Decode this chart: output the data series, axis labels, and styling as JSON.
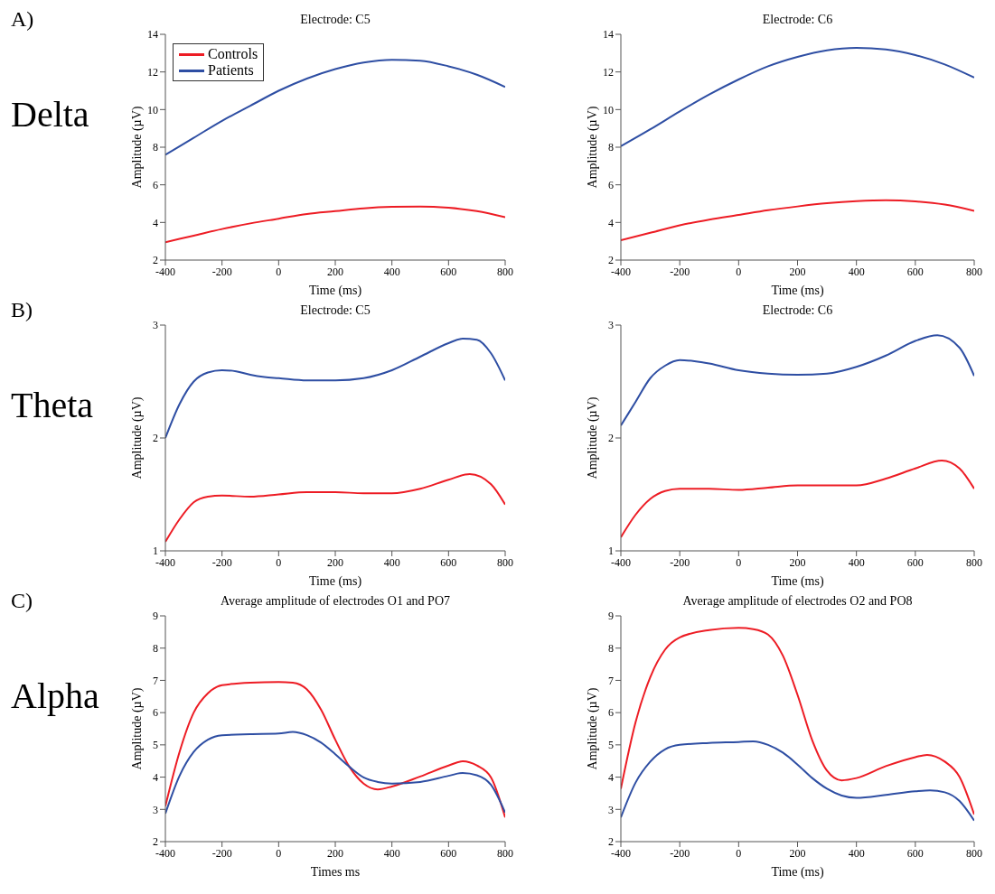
{
  "chart_data": [
    {
      "type": "line",
      "title": "Electrode: C5",
      "xlabel": "Time (ms)",
      "ylabel": "Amplitude (µV)",
      "annotations": [
        "A)",
        "Delta"
      ],
      "xlim": [
        -400,
        800
      ],
      "xticks": [
        -400,
        -200,
        0,
        200,
        400,
        600,
        800
      ],
      "ylim": [
        2,
        14
      ],
      "yticks": [
        2,
        4,
        6,
        8,
        10,
        12,
        14
      ],
      "legend": "top left",
      "grid": false,
      "marker": "none",
      "line_style": "solid",
      "series": [
        {
          "name": "Controls",
          "color": "#ed1c24",
          "x": [
            -400,
            -300,
            -200,
            -100,
            0,
            100,
            200,
            300,
            400,
            500,
            600,
            700,
            800
          ],
          "values": [
            2.95,
            3.3,
            3.65,
            3.95,
            4.2,
            4.45,
            4.6,
            4.75,
            4.83,
            4.85,
            4.78,
            4.6,
            4.28
          ]
        },
        {
          "name": "Patients",
          "color": "#2e4ea3",
          "x": [
            -400,
            -300,
            -200,
            -100,
            0,
            100,
            200,
            300,
            400,
            500,
            600,
            700,
            800
          ],
          "values": [
            7.6,
            8.5,
            9.4,
            10.2,
            11.0,
            11.65,
            12.15,
            12.5,
            12.65,
            12.6,
            12.3,
            11.85,
            11.2
          ]
        }
      ]
    },
    {
      "type": "line",
      "title": "Electrode: C6",
      "xlabel": "Time (ms)",
      "ylabel": "Amplitude (µV)",
      "xlim": [
        -400,
        800
      ],
      "xticks": [
        -400,
        -200,
        0,
        200,
        400,
        600,
        800
      ],
      "ylim": [
        2,
        14
      ],
      "yticks": [
        2,
        4,
        6,
        8,
        10,
        12,
        14
      ],
      "grid": false,
      "marker": "none",
      "line_style": "solid",
      "series": [
        {
          "color": "#ed1c24",
          "x": [
            -400,
            -300,
            -200,
            -100,
            0,
            100,
            200,
            300,
            400,
            500,
            600,
            700,
            800
          ],
          "values": [
            3.05,
            3.45,
            3.85,
            4.15,
            4.4,
            4.65,
            4.85,
            5.02,
            5.13,
            5.18,
            5.12,
            4.95,
            4.62
          ]
        },
        {
          "color": "#2e4ea3",
          "x": [
            -400,
            -300,
            -200,
            -100,
            0,
            100,
            200,
            300,
            400,
            500,
            600,
            700,
            800
          ],
          "values": [
            8.05,
            8.95,
            9.9,
            10.8,
            11.6,
            12.3,
            12.8,
            13.15,
            13.28,
            13.2,
            12.9,
            12.4,
            11.7
          ]
        }
      ]
    },
    {
      "type": "line",
      "title": "Electrode: C5",
      "xlabel": "Time (ms)",
      "ylabel": "Amplitude (µV)",
      "annotations": [
        "B)",
        "Theta"
      ],
      "xlim": [
        -400,
        800
      ],
      "xticks": [
        -400,
        -200,
        0,
        200,
        400,
        600,
        800
      ],
      "ylim": [
        1,
        3
      ],
      "yticks": [
        1,
        2,
        3
      ],
      "grid": false,
      "marker": "none",
      "line_style": "solid",
      "series": [
        {
          "color": "#ed1c24",
          "x": [
            -400,
            -350,
            -300,
            -250,
            -200,
            -100,
            0,
            100,
            200,
            300,
            400,
            500,
            600,
            675,
            750,
            800
          ],
          "values": [
            1.08,
            1.28,
            1.43,
            1.48,
            1.49,
            1.48,
            1.5,
            1.52,
            1.52,
            1.51,
            1.51,
            1.55,
            1.63,
            1.68,
            1.59,
            1.41
          ]
        },
        {
          "color": "#2e4ea3",
          "x": [
            -400,
            -350,
            -300,
            -250,
            -200,
            -150,
            -100,
            -50,
            0,
            100,
            200,
            300,
            400,
            500,
            600,
            650,
            700,
            750,
            800
          ],
          "values": [
            2.0,
            2.3,
            2.5,
            2.58,
            2.6,
            2.59,
            2.56,
            2.54,
            2.53,
            2.51,
            2.51,
            2.53,
            2.6,
            2.72,
            2.84,
            2.88,
            2.87,
            2.75,
            2.51
          ]
        }
      ]
    },
    {
      "type": "line",
      "title": "Electrode: C6",
      "xlabel": "Time (ms)",
      "ylabel": "Amplitude (µV)",
      "xlim": [
        -400,
        800
      ],
      "xticks": [
        -400,
        -200,
        0,
        200,
        400,
        600,
        800
      ],
      "ylim": [
        1,
        3
      ],
      "yticks": [
        1,
        2,
        3
      ],
      "grid": false,
      "marker": "none",
      "line_style": "solid",
      "series": [
        {
          "color": "#ed1c24",
          "x": [
            -400,
            -350,
            -300,
            -250,
            -200,
            -100,
            0,
            100,
            200,
            300,
            400,
            500,
            600,
            690,
            750,
            800
          ],
          "values": [
            1.12,
            1.32,
            1.46,
            1.53,
            1.55,
            1.55,
            1.54,
            1.56,
            1.58,
            1.58,
            1.58,
            1.64,
            1.73,
            1.8,
            1.73,
            1.55
          ]
        },
        {
          "color": "#2e4ea3",
          "x": [
            -400,
            -350,
            -300,
            -250,
            -200,
            -150,
            -100,
            0,
            100,
            200,
            300,
            400,
            500,
            600,
            675,
            750,
            800
          ],
          "values": [
            2.11,
            2.32,
            2.53,
            2.64,
            2.69,
            2.68,
            2.66,
            2.6,
            2.57,
            2.56,
            2.57,
            2.63,
            2.73,
            2.86,
            2.91,
            2.8,
            2.55
          ]
        }
      ]
    },
    {
      "type": "line",
      "title": "Average amplitude of electrodes O1 and PO7",
      "xlabel": "Times ms",
      "ylabel": "Amplitude (µV)",
      "annotations": [
        "C)",
        "Alpha"
      ],
      "xlim": [
        -400,
        800
      ],
      "xticks": [
        -400,
        -200,
        0,
        200,
        400,
        600,
        800
      ],
      "ylim": [
        2,
        9
      ],
      "yticks": [
        2,
        3,
        4,
        5,
        6,
        7,
        8,
        9
      ],
      "grid": false,
      "marker": "none",
      "line_style": "solid",
      "series": [
        {
          "color": "#ed1c24",
          "x": [
            -400,
            -350,
            -300,
            -250,
            -200,
            -100,
            0,
            50,
            100,
            150,
            200,
            250,
            300,
            350,
            400,
            500,
            600,
            650,
            700,
            750,
            800
          ],
          "values": [
            3.1,
            4.78,
            6.0,
            6.6,
            6.85,
            6.93,
            6.95,
            6.93,
            6.72,
            6.09,
            5.16,
            4.32,
            3.8,
            3.62,
            3.71,
            4.02,
            4.36,
            4.49,
            4.36,
            3.99,
            2.75
          ]
        },
        {
          "color": "#2e4ea3",
          "x": [
            -400,
            -350,
            -300,
            -250,
            -200,
            -100,
            0,
            50,
            100,
            150,
            200,
            250,
            300,
            350,
            400,
            500,
            600,
            650,
            700,
            750,
            800
          ],
          "values": [
            2.87,
            4.04,
            4.78,
            5.16,
            5.3,
            5.33,
            5.35,
            5.4,
            5.3,
            5.07,
            4.71,
            4.32,
            3.99,
            3.85,
            3.8,
            3.85,
            4.04,
            4.13,
            4.06,
            3.76,
            2.9
          ]
        }
      ]
    },
    {
      "type": "line",
      "title": "Average amplitude of electrodes O2 and PO8",
      "xlabel": "Time (ms)",
      "ylabel": "Amplitude (µV)",
      "xlim": [
        -400,
        800
      ],
      "xticks": [
        -400,
        -200,
        0,
        200,
        400,
        600,
        800
      ],
      "ylim": [
        2,
        9
      ],
      "yticks": [
        2,
        3,
        4,
        5,
        6,
        7,
        8,
        9
      ],
      "grid": false,
      "marker": "none",
      "line_style": "solid",
      "series": [
        {
          "color": "#ed1c24",
          "x": [
            -400,
            -350,
            -300,
            -250,
            -200,
            -100,
            0,
            50,
            100,
            150,
            200,
            250,
            300,
            350,
            400,
            500,
            600,
            640,
            700,
            750,
            800
          ],
          "values": [
            3.64,
            5.7,
            7.1,
            7.95,
            8.33,
            8.56,
            8.63,
            8.59,
            8.42,
            7.77,
            6.55,
            5.14,
            4.2,
            3.9,
            3.97,
            4.34,
            4.62,
            4.69,
            4.48,
            4.01,
            2.84
          ]
        },
        {
          "color": "#2e4ea3",
          "x": [
            -400,
            -350,
            -300,
            -250,
            -200,
            -100,
            0,
            50,
            100,
            150,
            200,
            250,
            300,
            350,
            400,
            500,
            600,
            650,
            700,
            750,
            800
          ],
          "values": [
            2.75,
            3.83,
            4.48,
            4.86,
            5.0,
            5.06,
            5.09,
            5.11,
            5.0,
            4.76,
            4.39,
            3.97,
            3.64,
            3.43,
            3.36,
            3.45,
            3.56,
            3.59,
            3.53,
            3.26,
            2.65
          ]
        }
      ]
    }
  ]
}
